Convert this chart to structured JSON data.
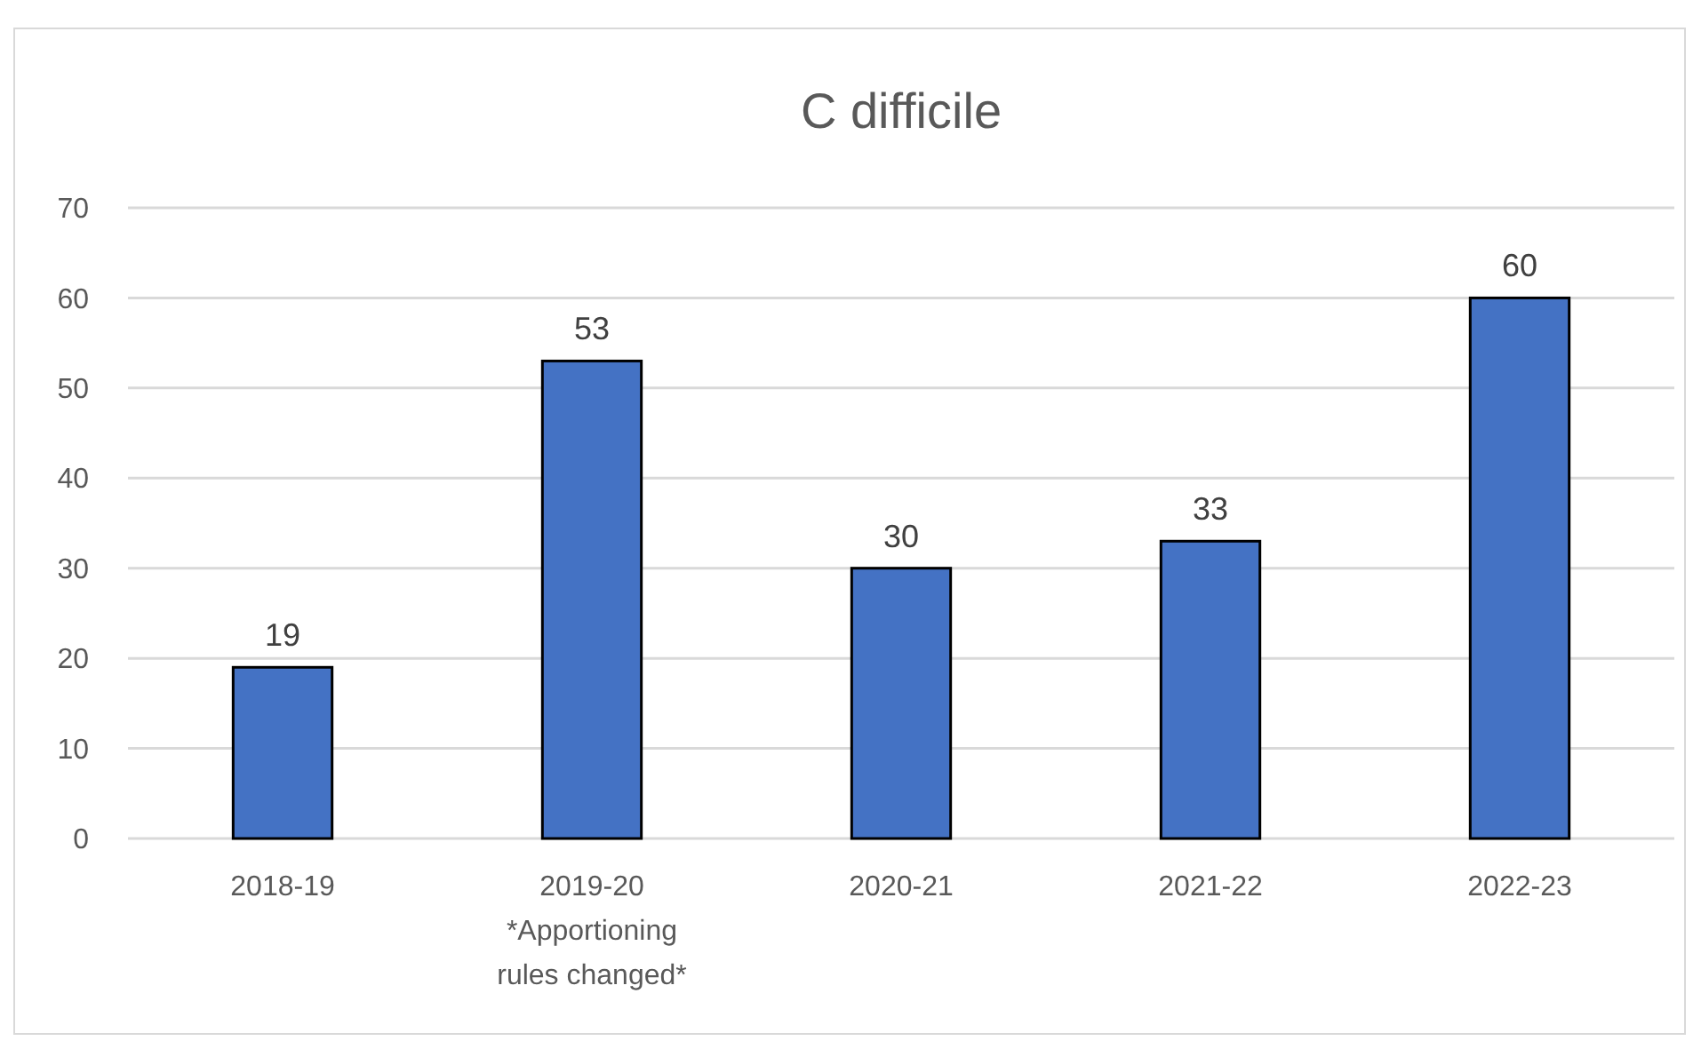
{
  "chart_data": {
    "type": "bar",
    "title": "C difficile",
    "categories": [
      "2018-19",
      "2019-20 *Apportioning rules changed*",
      "2020-21",
      "2021-22",
      "2022-23"
    ],
    "values": [
      19,
      53,
      30,
      33,
      60
    ],
    "color": "#4472c4",
    "ylim": [
      0,
      70
    ],
    "yticks": [
      0,
      10,
      20,
      30,
      40,
      50,
      60,
      70
    ],
    "grid": "y",
    "data_labels": true
  }
}
